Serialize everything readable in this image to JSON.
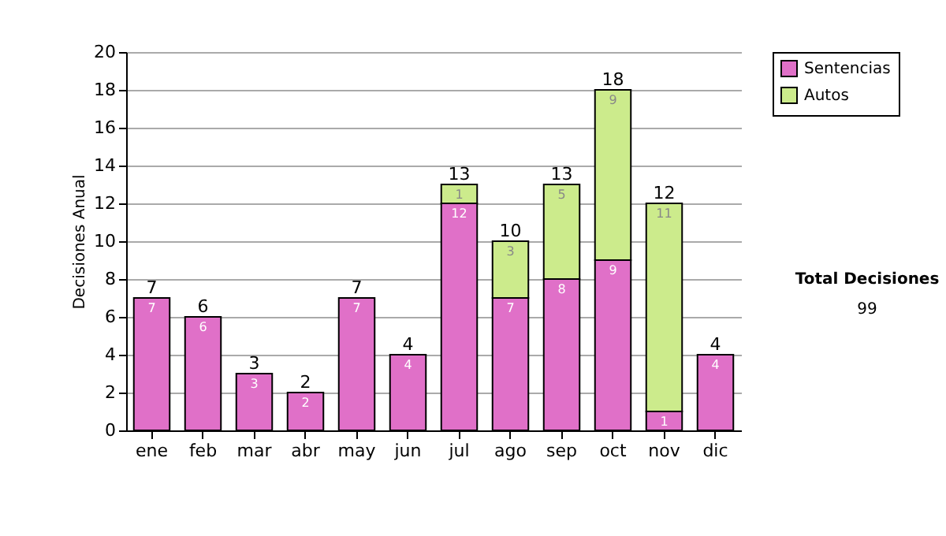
{
  "chart_data": {
    "type": "bar",
    "stacked": true,
    "ylabel": "Decisiones Anual",
    "categories": [
      "ene",
      "feb",
      "mar",
      "abr",
      "may",
      "jun",
      "jul",
      "ago",
      "sep",
      "oct",
      "nov",
      "dic"
    ],
    "series": [
      {
        "name": "Sentencias",
        "color": "#e070c8",
        "values": [
          7,
          6,
          3,
          2,
          7,
          4,
          12,
          7,
          8,
          9,
          1,
          4
        ]
      },
      {
        "name": "Autos",
        "color": "#cceb8c",
        "values": [
          null,
          null,
          null,
          null,
          null,
          null,
          1,
          3,
          5,
          9,
          11,
          null
        ]
      }
    ],
    "totals": [
      "7",
      "6",
      "3",
      "2",
      "7",
      "4",
      "13",
      "10",
      "13",
      "18",
      "12",
      "4"
    ],
    "data_labels": true,
    "ylim": [
      0,
      20
    ],
    "yticks": [
      0,
      2,
      4,
      6,
      8,
      10,
      12,
      14,
      16,
      18,
      20
    ],
    "grid": "y",
    "legend": "right",
    "annotations": [
      "Total Decisiones",
      "99"
    ]
  }
}
